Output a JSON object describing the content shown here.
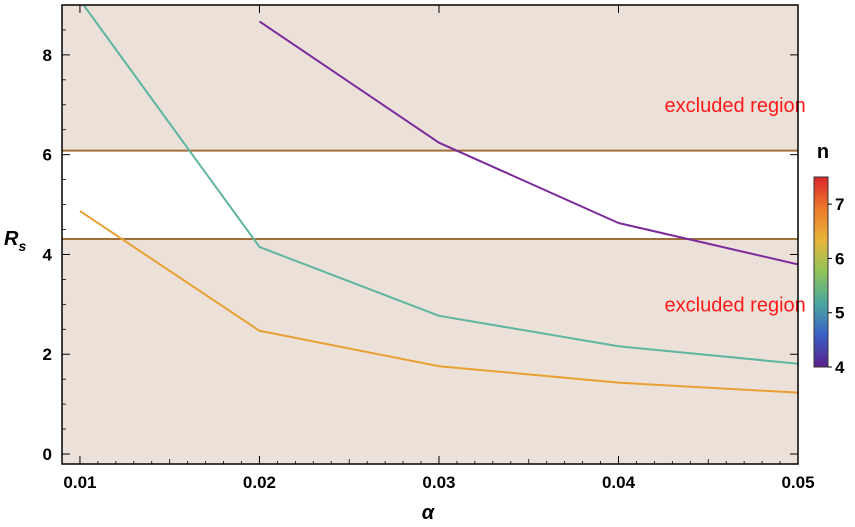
{
  "chart_data": {
    "type": "line",
    "xlabel": "α",
    "ylabel_main": "R",
    "ylabel_sub": "s",
    "xlim": [
      0.009,
      0.05
    ],
    "ylim": [
      -0.2,
      9
    ],
    "xticks": [
      0.01,
      0.02,
      0.03,
      0.04,
      0.05
    ],
    "xtick_labels": [
      "0.01",
      "0.02",
      "0.03",
      "0.04",
      "0.05"
    ],
    "yticks": [
      0,
      2,
      4,
      6,
      8
    ],
    "ytick_labels": [
      "0",
      "2",
      "4",
      "6",
      "8"
    ],
    "grid": false,
    "shaded_regions": [
      {
        "x_range": [
          0.009,
          0.05
        ],
        "y_range": [
          -0.2,
          4.31
        ],
        "color": "#ece1d9"
      },
      {
        "x_range": [
          0.009,
          0.05
        ],
        "y_range": [
          6.08,
          9
        ],
        "color": "#ece1d9"
      }
    ],
    "hlines": [
      {
        "y": 6.08,
        "color": "#a0703a"
      },
      {
        "y": 4.31,
        "color": "#a0703a"
      }
    ],
    "annotations": [
      {
        "text": "excluded region",
        "x": 0.0465,
        "y": 7.0,
        "color": "#ff1a1a"
      },
      {
        "text": "excluded region",
        "x": 0.0465,
        "y": 3.0,
        "color": "#ff1a1a"
      }
    ],
    "series": [
      {
        "n": 7,
        "color": "#e9a032",
        "x": [
          0.01,
          0.02,
          0.03,
          0.04,
          0.05
        ],
        "y": [
          4.87,
          2.47,
          1.76,
          1.43,
          1.23
        ]
      },
      {
        "n": 5.5,
        "color": "#5fb5a0",
        "x": [
          0.01,
          0.02,
          0.03,
          0.04,
          0.05
        ],
        "y": [
          9.1,
          4.15,
          2.77,
          2.16,
          1.81
        ]
      },
      {
        "n": 4,
        "color": "#7a2a9a",
        "x": [
          0.02,
          0.03,
          0.04,
          0.05
        ],
        "y": [
          8.67,
          6.24,
          4.63,
          3.8
        ]
      }
    ],
    "colorbar": {
      "title": "n",
      "range": [
        4,
        7.5
      ],
      "ticks": [
        4,
        5,
        6,
        7
      ],
      "tick_labels": [
        "4",
        "5",
        "6",
        "7"
      ],
      "stops": [
        "#5a1f8a",
        "#3a5fc8",
        "#4aa7a0",
        "#8fc35a",
        "#e7b63a",
        "#ee7a2a",
        "#d8262e"
      ]
    }
  }
}
